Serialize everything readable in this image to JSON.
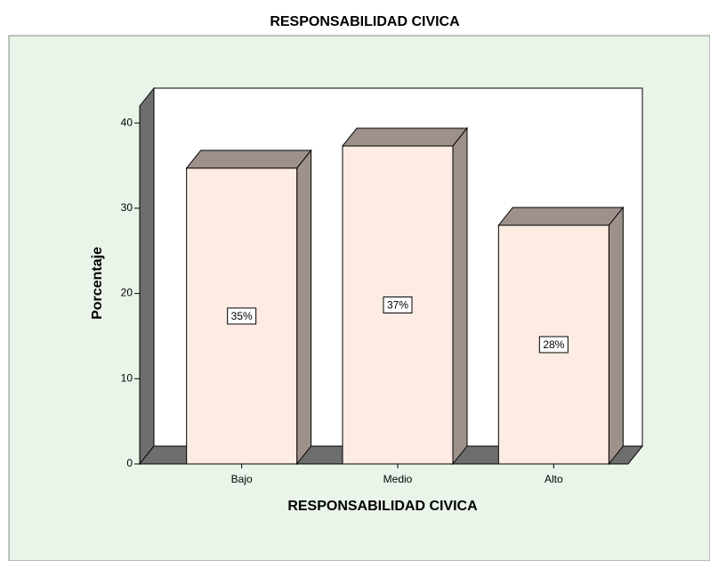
{
  "chart_data": {
    "type": "bar3d",
    "title": "RESPONSABILIDAD CIVICA",
    "x_label": "RESPONSABILIDAD CIVICA",
    "y_label": "Porcentaje",
    "categories": [
      "Bajo",
      "Medio",
      "Alto"
    ],
    "values": [
      34.7,
      37.3,
      28.0
    ],
    "value_labels": [
      "35%",
      "37%",
      "28%"
    ],
    "color": "#fdece3",
    "ylim": [
      0,
      42
    ],
    "yticks": [
      0,
      10,
      20,
      30,
      40
    ],
    "grid": false
  }
}
